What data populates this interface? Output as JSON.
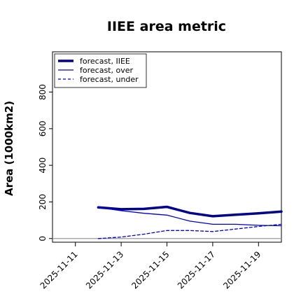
{
  "chart_data": {
    "type": "line",
    "title": "IIEE area metric",
    "xlabel": "",
    "ylabel": "Area (1000km2)",
    "x": [
      "2025-11-12",
      "2025-11-13",
      "2025-11-14",
      "2025-11-15",
      "2025-11-16",
      "2025-11-17",
      "2025-11-18",
      "2025-11-19",
      "2025-11-20"
    ],
    "x_ticks": [
      "2025-11-11",
      "2025-11-13",
      "2025-11-15",
      "2025-11-17",
      "2025-11-19"
    ],
    "highlight_tick": "2025-11-11",
    "xlim": [
      "2025-11-10",
      "2025-11-20"
    ],
    "y_ticks": [
      0,
      200,
      400,
      600,
      800
    ],
    "ylim": [
      -20,
      1020
    ],
    "grid": false,
    "legend_position": "top-left",
    "series": [
      {
        "name": "forecast, IIEE",
        "style": "thick",
        "color": "#00008b",
        "values": [
          170,
          160,
          162,
          173,
          140,
          122,
          130,
          138,
          147
        ]
      },
      {
        "name": "forecast, over",
        "style": "solid",
        "color": "#0000cd",
        "values": [
          170,
          152,
          138,
          128,
          95,
          78,
          78,
          72,
          70
        ]
      },
      {
        "name": "forecast, under",
        "style": "dashed",
        "color": "#0000cd",
        "values": [
          0,
          8,
          24,
          44,
          44,
          38,
          52,
          66,
          78
        ]
      }
    ],
    "colors": {
      "highlight_tick": "#228b22",
      "zero_line": "#9a9a9a"
    }
  }
}
